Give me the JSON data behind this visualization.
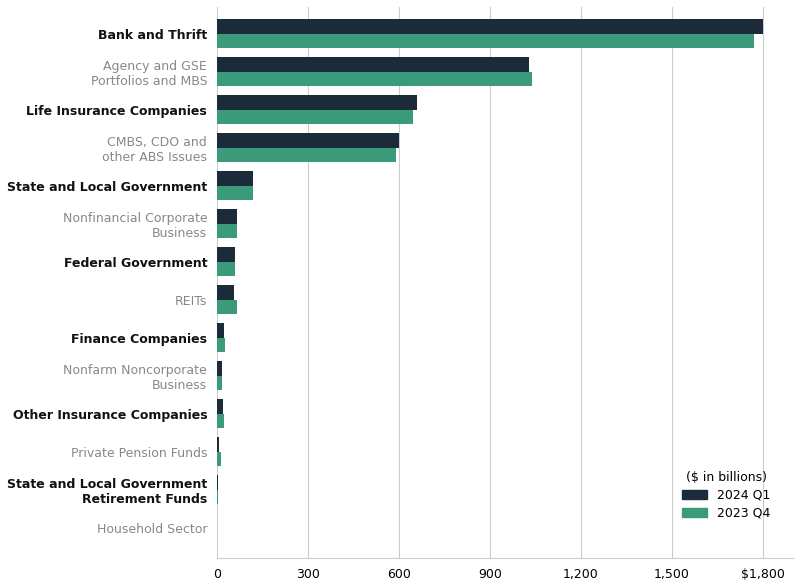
{
  "categories": [
    "Household Sector",
    "State and Local Government\nRetirement Funds",
    "Private Pension Funds",
    "Other Insurance Companies",
    "Nonfarm Noncorporate\nBusiness",
    "Finance Companies",
    "REITs",
    "Federal Government",
    "Nonfinancial Corporate\nBusiness",
    "State and Local Government",
    "CMBS, CDO and\nother ABS Issues",
    "Life Insurance Companies",
    "Agency and GSE\nPortfolios and MBS",
    "Bank and Thrift"
  ],
  "bold_flags": [
    false,
    true,
    false,
    true,
    false,
    true,
    false,
    true,
    false,
    true,
    false,
    true,
    false,
    true
  ],
  "values_2024q1": [
    1,
    2,
    8,
    20,
    18,
    25,
    55,
    60,
    65,
    120,
    600,
    660,
    1030,
    1800
  ],
  "values_2023q4": [
    1,
    2,
    15,
    22,
    18,
    27,
    65,
    58,
    65,
    120,
    590,
    645,
    1040,
    1770
  ],
  "color_2024q1": "#1c2b3a",
  "color_2023q4": "#3a9a7a",
  "xlim": [
    0,
    1900
  ],
  "xticks": [
    0,
    300,
    600,
    900,
    1200,
    1500,
    1800
  ],
  "xticklabels": [
    "0",
    "300",
    "600",
    "900",
    "1,200",
    "1,500",
    "$1,800"
  ],
  "legend_label_q1": "2024 Q1",
  "legend_label_q4": "2023 Q4",
  "legend_subtitle": "($ in billions)",
  "bar_height": 0.38,
  "figsize": [
    8.0,
    5.88
  ],
  "dpi": 100
}
